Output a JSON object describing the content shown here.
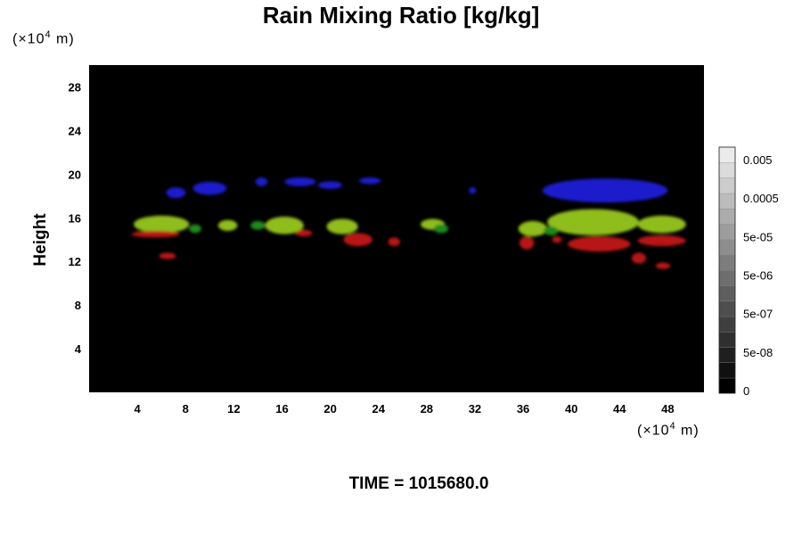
{
  "chart_data": {
    "type": "heatmap",
    "title": "Rain Mixing Ratio [kg/kg]",
    "ylabel": "Height",
    "xlabel": "",
    "unit_y": {
      "pre": "(×10",
      "exp": "4",
      "post": " m)"
    },
    "unit_x": {
      "pre": "(×10",
      "exp": "4",
      "post": " m)"
    },
    "xlim": [
      0,
      51
    ],
    "ylim": [
      0,
      30
    ],
    "x_ticks": [
      4,
      8,
      12,
      16,
      20,
      24,
      28,
      32,
      36,
      40,
      44,
      48
    ],
    "y_ticks": [
      4,
      8,
      12,
      16,
      20,
      24,
      28
    ],
    "background_color": "#000000",
    "colorbar": {
      "tick_labels": [
        "0.005",
        "0.0005",
        "5e-05",
        "5e-06",
        "5e-07",
        "5e-08",
        "0"
      ],
      "levels": 16
    },
    "regions": [
      {
        "color": "#1a1acc",
        "x": 7.2,
        "y": 18.3,
        "rx": 0.8,
        "ry": 0.5
      },
      {
        "color": "#1a1acc",
        "x": 10.0,
        "y": 18.7,
        "rx": 1.4,
        "ry": 0.6
      },
      {
        "color": "#1a1acc",
        "x": 14.3,
        "y": 19.3,
        "rx": 0.5,
        "ry": 0.4
      },
      {
        "color": "#1a1acc",
        "x": 17.5,
        "y": 19.3,
        "rx": 1.3,
        "ry": 0.4
      },
      {
        "color": "#1a1acc",
        "x": 20.0,
        "y": 19.0,
        "rx": 1.0,
        "ry": 0.35
      },
      {
        "color": "#1a1acc",
        "x": 23.3,
        "y": 19.4,
        "rx": 0.9,
        "ry": 0.3
      },
      {
        "color": "#1a1acc",
        "x": 31.8,
        "y": 18.5,
        "rx": 0.3,
        "ry": 0.3
      },
      {
        "color": "#1a1acc",
        "x": 42.8,
        "y": 18.5,
        "rx": 5.2,
        "ry": 1.1
      },
      {
        "color": "#8fbd1c",
        "x": 6.0,
        "y": 15.4,
        "rx": 2.3,
        "ry": 0.8
      },
      {
        "color": "#8fbd1c",
        "x": 11.5,
        "y": 15.3,
        "rx": 0.8,
        "ry": 0.5
      },
      {
        "color": "#8fbd1c",
        "x": 16.2,
        "y": 15.3,
        "rx": 1.6,
        "ry": 0.8
      },
      {
        "color": "#8fbd1c",
        "x": 21.0,
        "y": 15.2,
        "rx": 1.3,
        "ry": 0.7
      },
      {
        "color": "#8fbd1c",
        "x": 28.5,
        "y": 15.4,
        "rx": 1.0,
        "ry": 0.5
      },
      {
        "color": "#8fbd1c",
        "x": 36.8,
        "y": 15.0,
        "rx": 1.2,
        "ry": 0.7
      },
      {
        "color": "#8fbd1c",
        "x": 41.8,
        "y": 15.6,
        "rx": 3.8,
        "ry": 1.2
      },
      {
        "color": "#8fbd1c",
        "x": 47.5,
        "y": 15.4,
        "rx": 2.0,
        "ry": 0.8
      },
      {
        "color": "#1f8a1f",
        "x": 8.8,
        "y": 15.0,
        "rx": 0.5,
        "ry": 0.4
      },
      {
        "color": "#1f8a1f",
        "x": 14.0,
        "y": 15.3,
        "rx": 0.6,
        "ry": 0.4
      },
      {
        "color": "#1f8a1f",
        "x": 29.2,
        "y": 15.0,
        "rx": 0.6,
        "ry": 0.4
      },
      {
        "color": "#1f8a1f",
        "x": 38.3,
        "y": 14.8,
        "rx": 0.6,
        "ry": 0.4
      },
      {
        "color": "#b81414",
        "x": 5.5,
        "y": 14.5,
        "rx": 2.0,
        "ry": 0.3
      },
      {
        "color": "#b81414",
        "x": 6.5,
        "y": 12.5,
        "rx": 0.7,
        "ry": 0.3
      },
      {
        "color": "#b81414",
        "x": 17.8,
        "y": 14.6,
        "rx": 0.7,
        "ry": 0.3
      },
      {
        "color": "#b81414",
        "x": 22.3,
        "y": 14.0,
        "rx": 1.2,
        "ry": 0.6
      },
      {
        "color": "#b81414",
        "x": 25.3,
        "y": 13.8,
        "rx": 0.5,
        "ry": 0.4
      },
      {
        "color": "#b81414",
        "x": 36.3,
        "y": 13.7,
        "rx": 0.6,
        "ry": 0.6
      },
      {
        "color": "#b81414",
        "x": 38.8,
        "y": 14.0,
        "rx": 0.4,
        "ry": 0.3
      },
      {
        "color": "#b81414",
        "x": 42.3,
        "y": 13.6,
        "rx": 2.6,
        "ry": 0.7
      },
      {
        "color": "#b81414",
        "x": 47.5,
        "y": 13.9,
        "rx": 2.0,
        "ry": 0.5
      },
      {
        "color": "#b81414",
        "x": 45.6,
        "y": 12.3,
        "rx": 0.6,
        "ry": 0.5
      },
      {
        "color": "#b81414",
        "x": 47.6,
        "y": 11.6,
        "rx": 0.6,
        "ry": 0.3
      }
    ]
  },
  "footer": {
    "time_label": "TIME = 1015680.0"
  }
}
